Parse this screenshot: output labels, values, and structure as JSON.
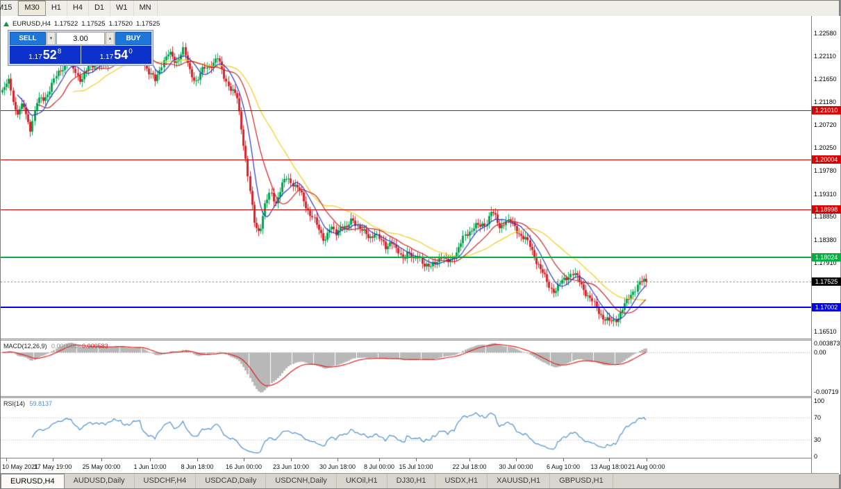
{
  "toolbar": {
    "timeframes": [
      "M15",
      "M30",
      "H1",
      "H4",
      "D1",
      "W1",
      "MN"
    ],
    "active": "M30"
  },
  "symbol_info": {
    "title": "EURUSD,H4",
    "open": "1.17522",
    "high": "1.17525",
    "low": "1.17520",
    "close": "1.17525"
  },
  "trade_panel": {
    "sell_label": "SELL",
    "buy_label": "BUY",
    "volume": "3.00",
    "spinner_down_icon": "▼",
    "spinner_up_icon": "▲",
    "sell_price": {
      "prefix": "1.17",
      "big": "52",
      "sup": "8"
    },
    "buy_price": {
      "prefix": "1.17",
      "big": "54",
      "sup": "0"
    }
  },
  "price_axis": {
    "labels": [
      "1.22580",
      "1.22110",
      "1.21650",
      "1.21180",
      "1.20720",
      "1.20250",
      "1.19780",
      "1.19310",
      "1.18850",
      "1.18380",
      "1.17910",
      "1.16510"
    ],
    "current_price_tag": {
      "label": "1.17525",
      "bg": "#000000"
    }
  },
  "macd_panel": {
    "label": "MACD(12,26,9)",
    "value_main": "0.000981",
    "value_signal": "0.000583",
    "axis_top": "0.003873",
    "axis_zero": "0.00",
    "axis_bottom": "-0.00719"
  },
  "rsi_panel": {
    "label": "RSI(14)",
    "value": "59.8137",
    "axis": [
      "100",
      "70",
      "30",
      "0"
    ],
    "levels": [
      70,
      30
    ]
  },
  "time_axis": {
    "ticks": [
      {
        "x": 8,
        "label": "10 May 2021"
      },
      {
        "x": 75,
        "label": "17 May 19:00"
      },
      {
        "x": 145,
        "label": "25 May 00:00"
      },
      {
        "x": 215,
        "label": "1 Jun 10:00"
      },
      {
        "x": 283,
        "label": "8 Jun 18:00"
      },
      {
        "x": 350,
        "label": "16 Jun 00:00"
      },
      {
        "x": 418,
        "label": "23 Jun 10:00"
      },
      {
        "x": 485,
        "label": "30 Jun 18:00"
      },
      {
        "x": 545,
        "label": "8 Jul 00:00"
      },
      {
        "x": 598,
        "label": "15 Jul 10:00"
      },
      {
        "x": 675,
        "label": "22 Jul 18:00"
      },
      {
        "x": 742,
        "label": "30 Jul 00:00"
      },
      {
        "x": 810,
        "label": "6 Aug 10:00"
      },
      {
        "x": 876,
        "label": "13 Aug 18:00"
      },
      {
        "x": 930,
        "label": "21 Aug 00:00"
      }
    ]
  },
  "tabs": {
    "items": [
      "EURUSD,H4",
      "AUDUSD,Daily",
      "USDCHF,H4",
      "USDCAD,Daily",
      "USDCNH,Daily",
      "UKOil,H1",
      "DJ30,H1",
      "USDX,H1",
      "XAUUSD,H1",
      "GBPUSD,H1"
    ],
    "active": "EURUSD,H4"
  },
  "chart_data": {
    "type": "candlestick",
    "symbol": "EURUSD",
    "timeframe": "H4",
    "ylim": [
      1.1637,
      1.22932
    ],
    "current_price": 1.17525,
    "ohlc_current": [
      1.17522,
      1.17525,
      1.1752,
      1.17525
    ],
    "ma_periods": [
      8,
      17,
      34
    ],
    "colors": {
      "up": "#00a651",
      "down": "#d9222a",
      "ma_fast": "#2d35c8",
      "ma_mid": "#cc2222",
      "ma_slow": "#f2cc16",
      "macd_hist": "#b8b8b8",
      "macd_signal": "#e02020",
      "rsi": "#4a8fd3"
    },
    "hlines": [
      {
        "price": 1.2101,
        "label": "1.21010",
        "color": "#dd0000",
        "width": 1
      },
      {
        "price": 1.20004,
        "label": "1.20004",
        "color": "#dd0000",
        "width": 1
      },
      {
        "price": 1.18998,
        "label": "1.18998",
        "color": "#dd0000",
        "width": 1
      },
      {
        "price": 1.18024,
        "label": "1.18024",
        "color": "#00b140",
        "width": 2
      },
      {
        "price": 1.17002,
        "label": "1.17002",
        "color": "#0000ee",
        "width": 2
      }
    ],
    "price_anchors": [
      [
        0,
        1.2135
      ],
      [
        12,
        1.216
      ],
      [
        22,
        1.2095
      ],
      [
        32,
        1.211
      ],
      [
        42,
        1.2065
      ],
      [
        52,
        1.2118
      ],
      [
        62,
        1.2125
      ],
      [
        72,
        1.215
      ],
      [
        82,
        1.2175
      ],
      [
        95,
        1.2205
      ],
      [
        105,
        1.2182
      ],
      [
        115,
        1.2165
      ],
      [
        125,
        1.2185
      ],
      [
        138,
        1.22
      ],
      [
        150,
        1.2188
      ],
      [
        162,
        1.2222
      ],
      [
        175,
        1.2205
      ],
      [
        188,
        1.2215
      ],
      [
        200,
        1.222
      ],
      [
        212,
        1.218
      ],
      [
        222,
        1.216
      ],
      [
        232,
        1.22
      ],
      [
        242,
        1.2215
      ],
      [
        252,
        1.22
      ],
      [
        262,
        1.2225
      ],
      [
        272,
        1.218
      ],
      [
        282,
        1.216
      ],
      [
        292,
        1.2185
      ],
      [
        302,
        1.2195
      ],
      [
        312,
        1.2205
      ],
      [
        322,
        1.217
      ],
      [
        332,
        1.214
      ],
      [
        340,
        1.2125
      ],
      [
        348,
        1.205
      ],
      [
        356,
        1.196
      ],
      [
        364,
        1.1875
      ],
      [
        372,
        1.1855
      ],
      [
        380,
        1.1905
      ],
      [
        388,
        1.1935
      ],
      [
        396,
        1.1915
      ],
      [
        404,
        1.1945
      ],
      [
        412,
        1.1965
      ],
      [
        420,
        1.1955
      ],
      [
        430,
        1.1935
      ],
      [
        440,
        1.1905
      ],
      [
        450,
        1.188
      ],
      [
        458,
        1.1855
      ],
      [
        466,
        1.184
      ],
      [
        474,
        1.1862
      ],
      [
        482,
        1.1848
      ],
      [
        490,
        1.1872
      ],
      [
        498,
        1.1858
      ],
      [
        506,
        1.188
      ],
      [
        514,
        1.1868
      ],
      [
        522,
        1.1852
      ],
      [
        530,
        1.184
      ],
      [
        538,
        1.1855
      ],
      [
        546,
        1.1835
      ],
      [
        554,
        1.1822
      ],
      [
        562,
        1.184
      ],
      [
        570,
        1.1812
      ],
      [
        578,
        1.18
      ],
      [
        586,
        1.1818
      ],
      [
        594,
        1.1792
      ],
      [
        602,
        1.1806
      ],
      [
        610,
        1.1788
      ],
      [
        618,
        1.1778
      ],
      [
        626,
        1.1795
      ],
      [
        634,
        1.1806
      ],
      [
        642,
        1.1788
      ],
      [
        650,
        1.1802
      ],
      [
        658,
        1.1818
      ],
      [
        666,
        1.184
      ],
      [
        674,
        1.1855
      ],
      [
        682,
        1.1868
      ],
      [
        690,
        1.1862
      ],
      [
        698,
        1.1872
      ],
      [
        706,
        1.1898
      ],
      [
        712,
        1.188
      ],
      [
        718,
        1.1862
      ],
      [
        726,
        1.188
      ],
      [
        734,
        1.1872
      ],
      [
        742,
        1.1858
      ],
      [
        750,
        1.1848
      ],
      [
        758,
        1.1832
      ],
      [
        766,
        1.181
      ],
      [
        774,
        1.1788
      ],
      [
        782,
        1.1762
      ],
      [
        790,
        1.1742
      ],
      [
        798,
        1.1735
      ],
      [
        806,
        1.1748
      ],
      [
        814,
        1.1762
      ],
      [
        822,
        1.1772
      ],
      [
        830,
        1.1758
      ],
      [
        838,
        1.1742
      ],
      [
        846,
        1.1722
      ],
      [
        854,
        1.1705
      ],
      [
        862,
        1.169
      ],
      [
        870,
        1.1676
      ],
      [
        878,
        1.1668
      ],
      [
        886,
        1.1678
      ],
      [
        894,
        1.1695
      ],
      [
        902,
        1.1712
      ],
      [
        910,
        1.1735
      ],
      [
        918,
        1.1748
      ],
      [
        926,
        1.1752
      ],
      [
        930,
        1.1752
      ]
    ]
  }
}
